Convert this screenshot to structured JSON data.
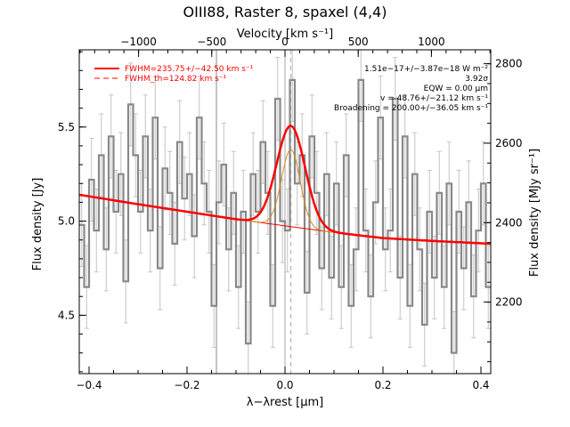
{
  "chart_data": {
    "type": "line",
    "title": "OIII88, Raster 8, spaxel (4,4)",
    "xlabel": "λ−λrest [μm]",
    "ylabel_left": "Flux density [Jy]",
    "ylabel_right": "Flux density [MJy sr⁻¹]",
    "xlabel_top": "Velocity [km s⁻¹]",
    "xlim": [
      -0.42,
      0.42
    ],
    "ylim": [
      4.19,
      5.91
    ],
    "y2lim": [
      2020,
      2835
    ],
    "top_xlim": [
      -1405,
      1405
    ],
    "x_ticks": [
      -0.4,
      -0.2,
      0.0,
      0.2,
      0.4
    ],
    "x_tick_labels": [
      "−0.4",
      "−0.2",
      "0.0",
      "0.2",
      "0.4"
    ],
    "y_ticks": [
      4.5,
      5.0,
      5.5
    ],
    "y_tick_labels": [
      "4.5",
      "5.0",
      "5.5"
    ],
    "y2_ticks": [
      2200,
      2400,
      2600,
      2800
    ],
    "y2_tick_labels": [
      "2200",
      "2400",
      "2600",
      "2800"
    ],
    "top_ticks": [
      -1000,
      -500,
      0,
      500,
      1000
    ],
    "top_tick_labels": [
      "−1000",
      "−500",
      "0",
      "500",
      "1000"
    ],
    "annotations": [
      "1.51e−17+/−3.87e−18 W m⁻²",
      "3.92σ",
      "EQW = 0.00 μm",
      "v = 48.76+/−21.12 km s⁻¹",
      "Broadening = 200.00+/−36.05 km s⁻¹"
    ],
    "legend": {
      "placement": "top-left",
      "entries": [
        {
          "label": "FWHM=235.75+/−42.50 km s⁻¹",
          "color": "#ff0000",
          "style": "solid"
        },
        {
          "label": "FWHM_th=124.82 km s⁻¹",
          "color": "#ff0000",
          "style": "dashed"
        }
      ]
    },
    "vertical_lines": [
      {
        "x": -0.14,
        "color": "#888888",
        "style": "solid"
      },
      {
        "x": 0.0,
        "color": "#aaaaaa",
        "style": "solid"
      },
      {
        "x": 0.012,
        "color": "#aaaaaa",
        "style": "dashed"
      }
    ],
    "baseline": {
      "x": [
        -0.42,
        -0.3,
        -0.2,
        -0.1,
        0.0,
        0.1,
        0.2,
        0.3,
        0.42
      ],
      "y": [
        5.14,
        5.09,
        5.05,
        5.01,
        4.975,
        4.94,
        4.91,
        4.895,
        4.88
      ],
      "color": "#ff0000"
    },
    "line_fit": {
      "center": 0.012,
      "amplitude": 0.535,
      "sigma": 0.029,
      "color": "#ff0000"
    },
    "component": {
      "center": 0.012,
      "amplitude": 0.41,
      "sigma": 0.019,
      "color": "#d98c1a"
    },
    "spectrum": {
      "color": "#888888",
      "x": [
        -0.42,
        -0.41,
        -0.4,
        -0.39,
        -0.38,
        -0.37,
        -0.36,
        -0.35,
        -0.34,
        -0.33,
        -0.32,
        -0.31,
        -0.3,
        -0.29,
        -0.28,
        -0.27,
        -0.26,
        -0.25,
        -0.24,
        -0.23,
        -0.22,
        -0.21,
        -0.2,
        -0.19,
        -0.18,
        -0.17,
        -0.16,
        -0.15,
        -0.14,
        -0.13,
        -0.12,
        -0.11,
        -0.1,
        -0.09,
        -0.08,
        -0.07,
        -0.06,
        -0.05,
        -0.04,
        -0.03,
        -0.02,
        -0.01,
        0.0,
        0.01,
        0.02,
        0.03,
        0.04,
        0.05,
        0.06,
        0.07,
        0.08,
        0.09,
        0.1,
        0.11,
        0.12,
        0.13,
        0.14,
        0.15,
        0.16,
        0.17,
        0.18,
        0.19,
        0.2,
        0.21,
        0.22,
        0.23,
        0.24,
        0.25,
        0.26,
        0.27,
        0.28,
        0.29,
        0.3,
        0.31,
        0.32,
        0.33,
        0.34,
        0.35,
        0.36,
        0.37,
        0.38,
        0.39,
        0.4,
        0.41
      ],
      "y": [
        4.98,
        4.65,
        5.22,
        4.95,
        5.35,
        4.85,
        5.45,
        5.05,
        5.25,
        4.68,
        5.62,
        5.35,
        5.05,
        5.45,
        4.95,
        5.55,
        4.75,
        5.28,
        5.15,
        4.88,
        5.42,
        5.12,
        5.25,
        4.92,
        5.55,
        5.2,
        5.05,
        4.55,
        5.1,
        5.3,
        4.85,
        5.15,
        4.65,
        5.05,
        4.35,
        5.25,
        5.05,
        5.42,
        5.15,
        4.55,
        5.65,
        5.0,
        4.95,
        5.75,
        5.2,
        5.35,
        4.62,
        5.45,
        5.15,
        4.75,
        5.25,
        4.7,
        5.2,
        4.65,
        5.35,
        4.55,
        4.85,
        5.75,
        4.95,
        4.6,
        5.1,
        5.55,
        4.85,
        4.95,
        5.65,
        4.7,
        5.45,
        4.55,
        5.25,
        4.85,
        4.45,
        5.05,
        4.7,
        5.15,
        4.65,
        5.2,
        4.3,
        5.05,
        4.75,
        5.1,
        4.6,
        4.95,
        5.2,
        4.65
      ],
      "error": 0.22
    }
  }
}
